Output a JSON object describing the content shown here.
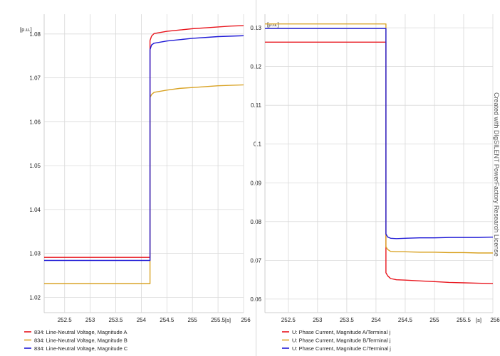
{
  "watermark": "Created with DIgSILENT PowerFactory Research License",
  "colors": {
    "series_a": "#e8141c",
    "series_b": "#d9a325",
    "series_c": "#1f1ad6",
    "grid": "#d9d9d9",
    "frame": "#cfcfcf"
  },
  "chart_data": [
    {
      "type": "line",
      "ylabel": "[p.u.]",
      "xunit": "[s]",
      "xlim": [
        252.1,
        256.0
      ],
      "ylim": [
        1.0165,
        1.0845
      ],
      "xticks": [
        252.5,
        253,
        253.5,
        254,
        254.5,
        255,
        255.5,
        256
      ],
      "xtick_labels": [
        "252.5",
        "253",
        "253.5",
        "254",
        "254.5",
        "255",
        "255.5",
        "256"
      ],
      "yticks": [
        1.02,
        1.03,
        1.04,
        1.05,
        1.06,
        1.07,
        1.08
      ],
      "ytick_labels": [
        "1.02",
        "1.03",
        "1.04",
        "1.05",
        "1.06",
        "1.07",
        "1.08"
      ],
      "grid": true,
      "legend_position": "bottom",
      "series": [
        {
          "name": "834: Line-Neutral Voltage, Magnitude A",
          "color": "#e8141c",
          "x": [
            252.1,
            254.17,
            254.17,
            254.2,
            254.25,
            254.35,
            254.5,
            254.75,
            255.0,
            255.25,
            255.5,
            255.75,
            256.0
          ],
          "y": [
            1.0291,
            1.0291,
            1.0785,
            1.0795,
            1.0801,
            1.0803,
            1.0806,
            1.0809,
            1.0812,
            1.0814,
            1.0816,
            1.0818,
            1.0819
          ]
        },
        {
          "name": "834: Line-Neutral Voltage, Magnitude B",
          "color": "#d9a325",
          "x": [
            252.1,
            254.17,
            254.17,
            254.2,
            254.25,
            254.35,
            254.5,
            254.75,
            255.0,
            255.25,
            255.5,
            255.75,
            256.0
          ],
          "y": [
            1.0231,
            1.0231,
            1.0655,
            1.0662,
            1.0667,
            1.0669,
            1.0672,
            1.0676,
            1.0678,
            1.068,
            1.0682,
            1.0683,
            1.0684
          ]
        },
        {
          "name": "834: Line-Neutral Voltage, Magnitude C",
          "color": "#1f1ad6",
          "x": [
            252.1,
            254.17,
            254.17,
            254.2,
            254.25,
            254.35,
            254.5,
            254.75,
            255.0,
            255.25,
            255.5,
            255.75,
            256.0
          ],
          "y": [
            1.0284,
            1.0284,
            1.0764,
            1.0775,
            1.0779,
            1.0781,
            1.0784,
            1.0787,
            1.079,
            1.0792,
            1.0794,
            1.0795,
            1.0796
          ]
        }
      ]
    },
    {
      "type": "line",
      "ylabel": "[p.u.]",
      "xunit": "[s]",
      "xlim": [
        252.1,
        256.0
      ],
      "ylim": [
        0.0565,
        0.1335
      ],
      "xticks": [
        252.5,
        253,
        253.5,
        254,
        254.5,
        255,
        255.5,
        256
      ],
      "xtick_labels": [
        "252.5",
        "253",
        "253.5",
        "254",
        "254.5",
        "255",
        "255.5",
        "256"
      ],
      "yticks": [
        0.06,
        0.07,
        0.08,
        0.09,
        0.1,
        0.11,
        0.12,
        0.13
      ],
      "ytick_labels": [
        "0.06",
        "0.07",
        "0.08",
        "0.09",
        "0.1",
        "0.11",
        "0.12",
        "0.13"
      ],
      "grid": true,
      "legend_position": "bottom",
      "series": [
        {
          "name": "U: Phase Current, Magnitude A/Terminal j",
          "color": "#e8141c",
          "x": [
            252.1,
            254.17,
            254.17,
            254.2,
            254.25,
            254.35,
            254.5,
            254.75,
            255.0,
            255.25,
            255.5,
            255.75,
            256.0
          ],
          "y": [
            0.1263,
            0.1263,
            0.0668,
            0.066,
            0.0653,
            0.065,
            0.0649,
            0.0647,
            0.0645,
            0.0643,
            0.0642,
            0.0641,
            0.064
          ]
        },
        {
          "name": "U: Phase Current, Magnitude B/Terminal j",
          "color": "#d9a325",
          "x": [
            252.1,
            254.17,
            254.17,
            254.2,
            254.25,
            254.35,
            254.5,
            254.75,
            255.0,
            255.25,
            255.5,
            255.75,
            256.0
          ],
          "y": [
            0.131,
            0.131,
            0.0735,
            0.0728,
            0.0723,
            0.0722,
            0.0722,
            0.0721,
            0.0721,
            0.072,
            0.072,
            0.0719,
            0.0719
          ]
        },
        {
          "name": "U: Phase Current, Magnitude C/Terminal j",
          "color": "#1f1ad6",
          "x": [
            252.1,
            254.17,
            254.17,
            254.2,
            254.25,
            254.35,
            254.5,
            254.75,
            255.0,
            255.25,
            255.5,
            255.75,
            256.0
          ],
          "y": [
            0.1298,
            0.1298,
            0.0768,
            0.076,
            0.0757,
            0.0756,
            0.0757,
            0.0758,
            0.0758,
            0.0759,
            0.0759,
            0.0759,
            0.076
          ]
        }
      ]
    }
  ]
}
